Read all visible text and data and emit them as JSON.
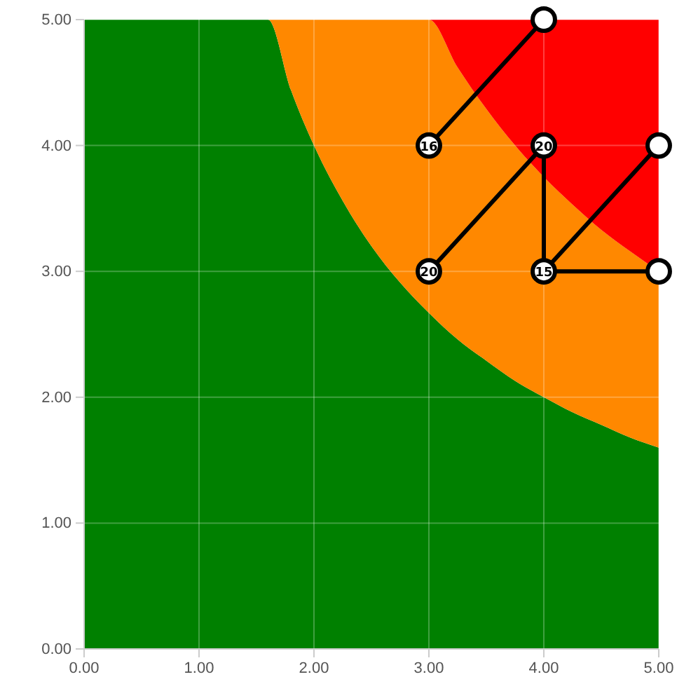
{
  "chart_data": {
    "type": "scatter",
    "xlim": [
      0,
      5
    ],
    "ylim": [
      0,
      5
    ],
    "stacked": true,
    "xticks": [
      {
        "value": 0,
        "label": "0.00"
      },
      {
        "value": 1,
        "label": "1.00"
      },
      {
        "value": 2,
        "label": "2.00"
      },
      {
        "value": 3,
        "label": "3.00"
      },
      {
        "value": 4,
        "label": "4.00"
      },
      {
        "value": 5,
        "label": "5.00"
      }
    ],
    "yticks": [
      {
        "value": 0,
        "label": "0.00"
      },
      {
        "value": 1,
        "label": "1.00"
      },
      {
        "value": 2,
        "label": "2.00"
      },
      {
        "value": 3,
        "label": "3.00"
      },
      {
        "value": 4,
        "label": "4.00"
      },
      {
        "value": 5,
        "label": "5.00"
      }
    ],
    "grid": true,
    "annotations": [
      "16",
      "20",
      "20",
      "15"
    ],
    "series": [
      {
        "type": "area",
        "color": "#008000",
        "x": [
          0,
          1.6,
          1.8,
          2,
          2.25,
          2.5,
          2.75,
          3,
          3.25,
          3.5,
          3.75,
          4,
          4.25,
          4.5,
          4.75,
          5
        ],
        "values": [
          5,
          5,
          4.44,
          4,
          3.56,
          3.2,
          2.91,
          2.67,
          2.46,
          2.29,
          2.13,
          2,
          1.88,
          1.78,
          1.68,
          1.6
        ]
      },
      {
        "type": "area",
        "color": "#ff8800",
        "x": [
          0,
          1.6,
          1.8,
          2,
          2.25,
          2.5,
          2.75,
          3,
          3.25,
          3.5,
          3.75,
          4,
          4.25,
          4.5,
          4.75,
          5
        ],
        "values": [
          0,
          0,
          0.56,
          1,
          1.44,
          1.8,
          2.09,
          2.33,
          2.16,
          2,
          1.87,
          1.75,
          1.65,
          1.55,
          1.48,
          1.4
        ]
      },
      {
        "type": "area",
        "color": "#ff0000",
        "x": [
          0,
          1.6,
          1.8,
          2,
          2.25,
          2.5,
          2.75,
          3,
          3.25,
          3.5,
          3.75,
          4,
          4.25,
          4.5,
          4.75,
          5
        ],
        "values": [
          0,
          0,
          0,
          0,
          0,
          0,
          0,
          0,
          0.38,
          0.71,
          1,
          1.25,
          1.47,
          1.67,
          1.84,
          2
        ]
      },
      {
        "type": "line",
        "color": "#000000",
        "marker": "none",
        "x": [
          3,
          4
        ],
        "values": [
          4,
          5
        ]
      },
      {
        "type": "line",
        "color": "#000000",
        "marker": "none",
        "x": [
          3,
          4
        ],
        "values": [
          3,
          4
        ]
      },
      {
        "type": "line",
        "color": "#000000",
        "marker": "none",
        "x": [
          4,
          4
        ],
        "values": [
          4,
          3
        ]
      },
      {
        "type": "line",
        "color": "#000000",
        "marker": "none",
        "x": [
          4,
          5
        ],
        "values": [
          3,
          4
        ]
      },
      {
        "type": "line",
        "color": "#000000",
        "marker": "none",
        "x": [
          4,
          5
        ],
        "values": [
          3,
          3
        ]
      },
      {
        "color": "#000000",
        "marker": "circle",
        "x": [
          3,
          3,
          4,
          4,
          4,
          5,
          5
        ],
        "values": [
          4,
          3,
          4,
          3,
          5,
          4,
          3
        ]
      }
    ]
  }
}
